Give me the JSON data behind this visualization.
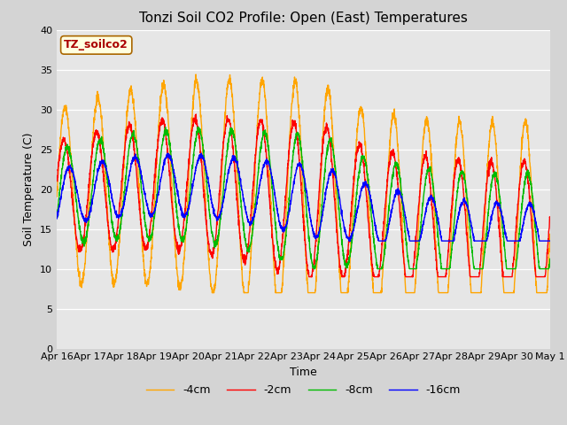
{
  "title": "Tonzi Soil CO2 Profile: Open (East) Temperatures",
  "xlabel": "Time",
  "ylabel": "Soil Temperature (C)",
  "ylim": [
    0,
    40
  ],
  "xlim_days": [
    0,
    15
  ],
  "x_tick_labels": [
    "Apr 16",
    "Apr 17",
    "Apr 18",
    "Apr 19",
    "Apr 20",
    "Apr 21",
    "Apr 22",
    "Apr 23",
    "Apr 24",
    "Apr 25",
    "Apr 26",
    "Apr 27",
    "Apr 28",
    "Apr 29",
    "Apr 30",
    "May 1"
  ],
  "legend_label": "TZ_soilco2",
  "series_labels": [
    "-2cm",
    "-4cm",
    "-8cm",
    "-16cm"
  ],
  "series_colors": [
    "#ff0000",
    "#ffa500",
    "#00bb00",
    "#0000ff"
  ],
  "background_color": "#d4d4d4",
  "plot_bg_color": "#e6e6e6",
  "title_fontsize": 11,
  "axis_fontsize": 9,
  "tick_fontsize": 8,
  "legend_fontsize": 9
}
